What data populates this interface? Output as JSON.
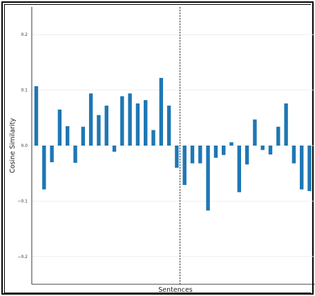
{
  "chart_data": {
    "type": "bar",
    "title": "",
    "xlabel": "Sentences",
    "ylabel": "Cosine Similarity",
    "ylim": [
      -0.25,
      0.25
    ],
    "yticks": [
      -0.2,
      -0.1,
      0.0,
      0.1,
      0.2
    ],
    "ytick_labels": [
      "−0.2",
      "−0.1",
      "0.0",
      "0.1",
      "0.2"
    ],
    "grid": true,
    "bar_color": "#1f77b4",
    "divider": {
      "x_index": 18.5,
      "style": "dashed",
      "color": "#000000"
    },
    "values": [
      0.107,
      -0.079,
      -0.03,
      0.065,
      0.035,
      -0.031,
      0.034,
      0.094,
      0.055,
      0.072,
      -0.011,
      0.089,
      0.094,
      0.076,
      0.082,
      0.028,
      0.122,
      0.072,
      -0.04,
      -0.071,
      -0.032,
      -0.032,
      -0.117,
      -0.022,
      -0.017,
      0.006,
      -0.084,
      -0.034,
      0.047,
      -0.008,
      -0.016,
      0.034,
      0.076,
      -0.032,
      -0.079,
      -0.082
    ]
  }
}
